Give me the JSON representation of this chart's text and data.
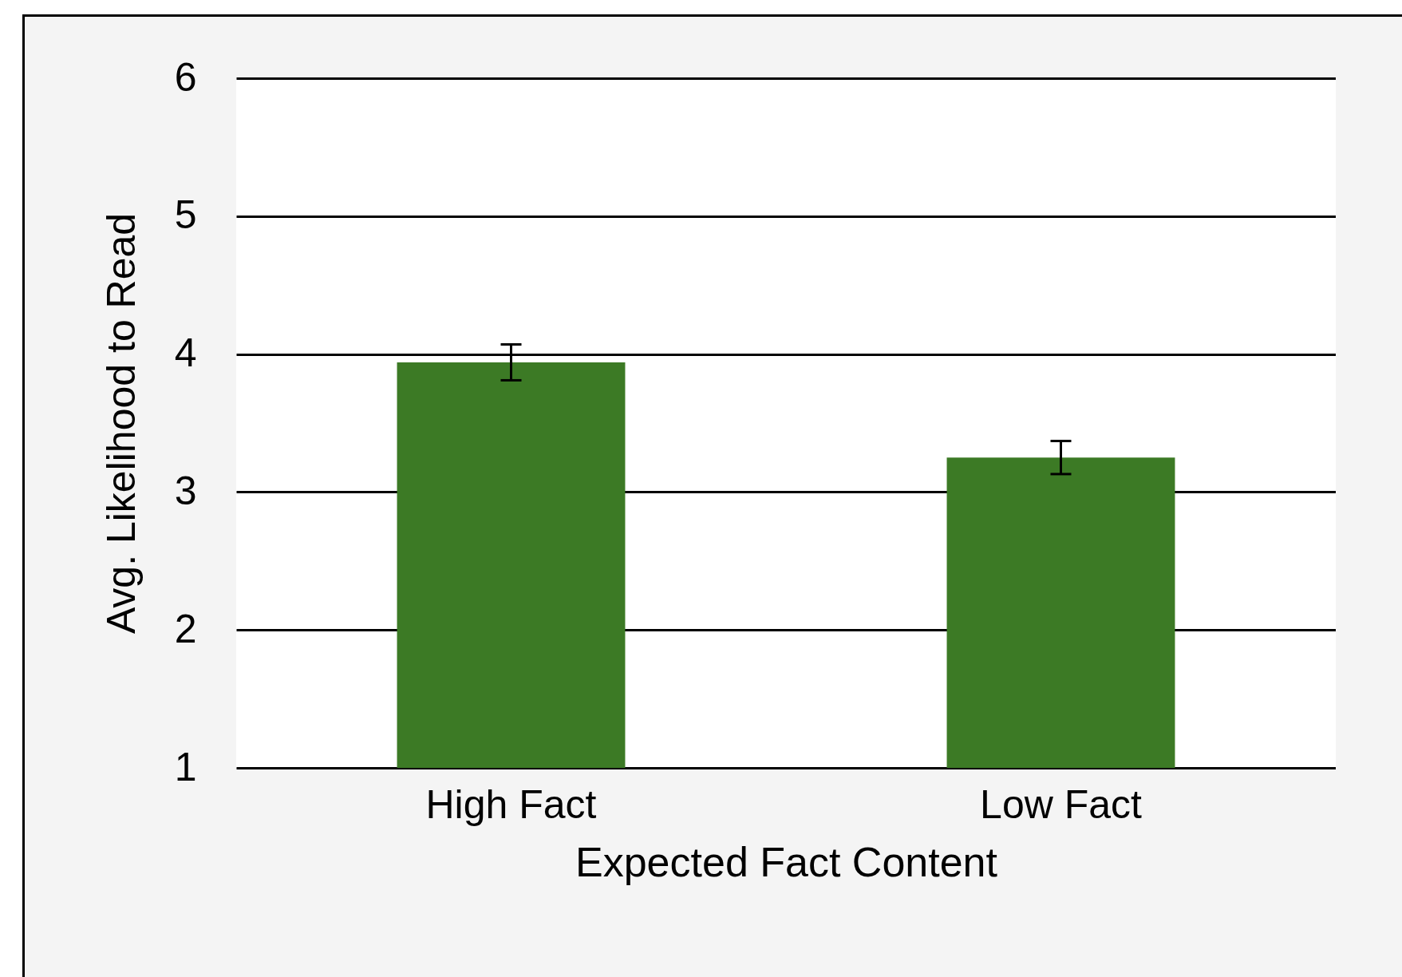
{
  "chart_data": {
    "type": "bar",
    "xlabel": "Expected Fact Content",
    "ylabel": "Avg. Likelihood to Read",
    "categories": [
      "High Fact",
      "Low Fact"
    ],
    "values": [
      3.94,
      3.25
    ],
    "errors": [
      0.13,
      0.12
    ],
    "color": "#3c7a25",
    "ylim": [
      1,
      6
    ],
    "yticks": [
      1,
      2,
      3,
      4,
      5,
      6
    ],
    "grid": "y"
  }
}
